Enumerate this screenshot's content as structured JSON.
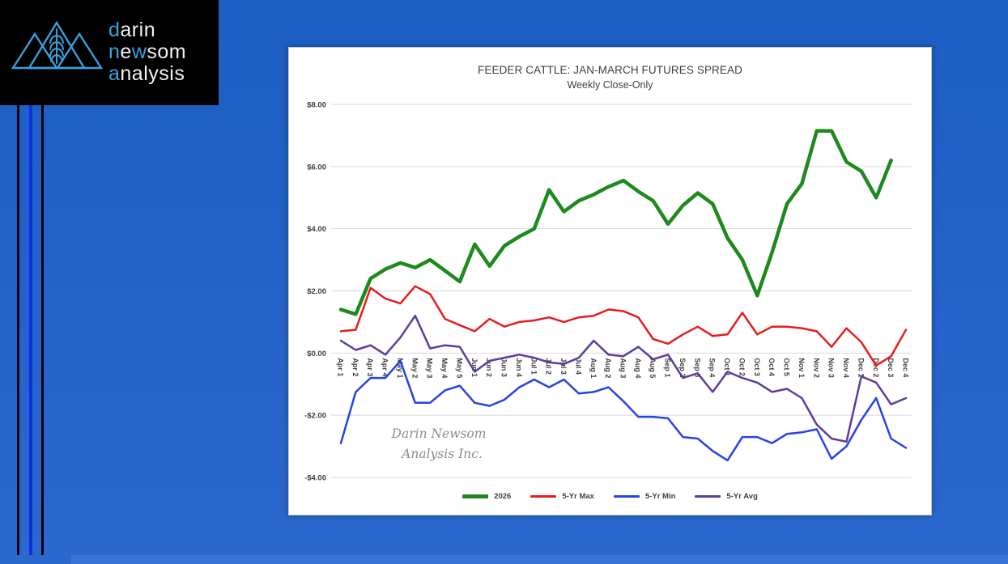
{
  "logo": {
    "bg": "#000000",
    "accent_color": "#3aa0dc",
    "text_color": "#f2f2f2",
    "emblem": "mountains-wheat-logo",
    "lines": [
      {
        "segments": [
          {
            "text": "d",
            "accent": true
          },
          {
            "text": "arin",
            "accent": false
          }
        ]
      },
      {
        "segments": [
          {
            "text": "n",
            "accent": true
          },
          {
            "text": "e",
            "accent": false
          },
          {
            "text": "w",
            "accent": true
          },
          {
            "text": "som",
            "accent": false
          }
        ]
      },
      {
        "segments": [
          {
            "text": "a",
            "accent": true
          },
          {
            "text": "nalysis",
            "accent": false
          }
        ]
      }
    ]
  },
  "slide": {
    "background_top": "#1c5ec3",
    "background_bottom": "#2b68ce",
    "accent_line_blue": "#0c2fe6",
    "accent_line_black": "#020308",
    "bottom_band_color": "#3b74d8"
  },
  "chart": {
    "title": "FEEDER CATTLE: JAN-MARCH FUTURES SPREAD",
    "subtitle": "Weekly Close-Only",
    "watermark_line1": "Darin Newsom",
    "watermark_line2": "Analysis Inc."
  },
  "chart_data": {
    "type": "line",
    "title": "FEEDER CATTLE: JAN-MARCH FUTURES SPREAD",
    "subtitle": "Weekly Close-Only",
    "grid": "horizontal",
    "gridline_color": "#d9d9d9",
    "axis_text_color": "#3f3f3f",
    "legend_position": "bottom",
    "x_labels_rotated": true,
    "x_axis_crosses_at": 0,
    "ylim": [
      -4,
      8
    ],
    "y_ticks": [
      "$8.00",
      "$6.00",
      "$4.00",
      "$2.00",
      "$0.00",
      "-$2.00",
      "-$4.00"
    ],
    "y_tick_values": [
      8,
      6,
      4,
      2,
      0,
      -2,
      -4
    ],
    "categories": [
      "Apr 1",
      "Apr 2",
      "Apr 3",
      "Apr 4",
      "May 1",
      "May 2",
      "May 3",
      "May 4",
      "May 5",
      "Jun 1",
      "Jun 2",
      "Jun 3",
      "Jun 4",
      "Jul 1",
      "Jul 2",
      "Jul 3",
      "Jul 4",
      "Aug 1",
      "Aug 2",
      "Aug 3",
      "Aug 4",
      "Aug 5",
      "Sep 1",
      "Sep 2",
      "Sep 3",
      "Sep 4",
      "Oct 1",
      "Oct 2",
      "Oct 3",
      "Oct 4",
      "Oct 5",
      "Nov 1",
      "Nov 2",
      "Nov 3",
      "Nov 4",
      "Dec 1",
      "Dec 2",
      "Dec 3",
      "Dec 4"
    ],
    "series": [
      {
        "name": "2026",
        "color": "#1e8a1e",
        "line_width": 4.5,
        "values": [
          1.4,
          1.25,
          2.4,
          2.7,
          2.9,
          2.75,
          3.0,
          2.65,
          2.3,
          3.5,
          2.8,
          3.45,
          3.75,
          4.0,
          5.25,
          4.55,
          4.9,
          5.1,
          5.35,
          5.55,
          5.2,
          4.9,
          4.15,
          4.75,
          5.15,
          4.8,
          3.7,
          3.0,
          1.85,
          3.25,
          4.8,
          5.45,
          7.15,
          7.15,
          6.15,
          5.85,
          5.0,
          6.2
        ]
      },
      {
        "name": "5-Yr Max",
        "color": "#e81c1c",
        "line_width": 2.5,
        "values": [
          0.7,
          0.75,
          2.1,
          1.75,
          1.6,
          2.15,
          1.9,
          1.1,
          0.9,
          0.7,
          1.1,
          0.85,
          1.0,
          1.05,
          1.15,
          1.0,
          1.15,
          1.2,
          1.4,
          1.35,
          1.15,
          0.45,
          0.3,
          0.6,
          0.85,
          0.55,
          0.6,
          1.3,
          0.6,
          0.85,
          0.85,
          0.8,
          0.7,
          0.2,
          0.8,
          0.35,
          -0.4,
          -0.1,
          0.75
        ]
      },
      {
        "name": "5-Yr Min",
        "color": "#2543e6",
        "line_width": 2.5,
        "values": [
          -2.9,
          -1.25,
          -0.8,
          -0.8,
          -0.25,
          -1.6,
          -1.6,
          -1.2,
          -1.05,
          -1.6,
          -1.7,
          -1.5,
          -1.1,
          -0.85,
          -1.1,
          -0.85,
          -1.3,
          -1.25,
          -1.1,
          -1.55,
          -2.05,
          -2.05,
          -2.1,
          -2.7,
          -2.75,
          -3.15,
          -3.45,
          -2.7,
          -2.7,
          -2.9,
          -2.6,
          -2.55,
          -2.45,
          -3.4,
          -3.0,
          -2.15,
          -1.45,
          -2.75,
          -3.05
        ]
      },
      {
        "name": "5-Yr Avg",
        "color": "#5e3c99",
        "line_width": 2.5,
        "values": [
          0.4,
          0.1,
          0.25,
          -0.05,
          0.5,
          1.2,
          0.15,
          0.25,
          0.2,
          -0.6,
          -0.25,
          -0.15,
          -0.05,
          -0.15,
          -0.3,
          -0.35,
          -0.15,
          0.4,
          -0.05,
          -0.1,
          0.2,
          -0.2,
          -0.05,
          -0.8,
          -0.65,
          -1.25,
          -0.6,
          -0.8,
          -0.95,
          -1.25,
          -1.15,
          -1.45,
          -2.3,
          -2.75,
          -2.85,
          -0.75,
          -0.95,
          -1.65,
          -1.45
        ]
      }
    ]
  }
}
